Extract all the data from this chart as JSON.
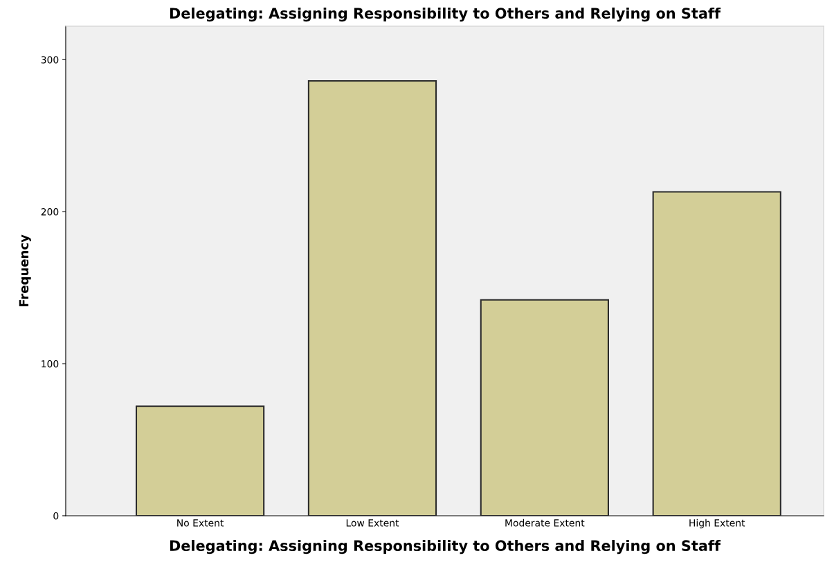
{
  "chart_data": {
    "type": "bar",
    "title": "Delegating: Assigning Responsibility to Others and Relying on Staff",
    "xlabel": "Delegating: Assigning Responsibility to Others and Relying on Staff",
    "ylabel": "Frequency",
    "categories": [
      "No Extent",
      "Low Extent",
      "Moderate Extent",
      "High Extent"
    ],
    "values": [
      72,
      286,
      142,
      213
    ],
    "color": "#d3ce97",
    "ylim": [
      0,
      322
    ],
    "yticks": [
      0,
      100,
      200,
      300
    ],
    "grid": false,
    "legend": false
  }
}
